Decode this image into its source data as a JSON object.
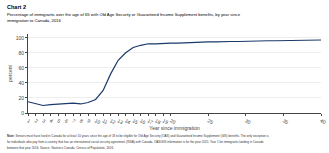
{
  "chart_data": {
    "type": "line",
    "title": "Chart 2",
    "subtitle": [
      "Percentage of immigrants over the age of 65 with Old Age Security or Guaranteed Income Supplement benefits, by year since",
      "immigration to Canada, 2016"
    ],
    "xlabel": "Year since immigration",
    "ylabel": "percent",
    "x": [
      1,
      2,
      3,
      4,
      5,
      6,
      7,
      8,
      9,
      10,
      11,
      12,
      13,
      14,
      15,
      16,
      17,
      18,
      19,
      20,
      21,
      22,
      23,
      24,
      25,
      26,
      27,
      28,
      29,
      30,
      31,
      32,
      33,
      34,
      35,
      36,
      37,
      38,
      39,
      40
    ],
    "values": [
      15,
      12,
      10,
      11,
      12,
      13,
      13,
      12,
      14,
      18,
      30,
      52,
      70,
      80,
      87,
      90,
      92,
      92,
      93,
      93,
      93,
      93.5,
      94,
      94,
      94.5,
      94.5,
      95,
      95,
      95,
      95.5,
      95.5,
      95.5,
      96,
      96,
      96,
      96,
      96.2,
      96.2,
      96.5,
      97
    ],
    "color": "#1a3a6b",
    "xlim": [
      1,
      40
    ],
    "ylim": [
      0,
      105
    ],
    "xticks": [
      1,
      2,
      3,
      4,
      5,
      6,
      7,
      8,
      9,
      10,
      11,
      12,
      13,
      14,
      15,
      16,
      17,
      18,
      19,
      20,
      25,
      30,
      35,
      40
    ],
    "yticks": [
      0,
      20,
      40,
      60,
      80,
      100
    ],
    "grid": "y",
    "note_label": "Note:",
    "notes": [
      " Seniors must have lived in Canada for at least 10 years since the age of 18 to be eligible for Old Age Security (OAS) and Guaranteed Income Supplement (GIS) benefits. The only exception is",
      "for individuals who pay from a country that has an international social security agreement (ISSA) with Canada. OAS/GIS information is for the year 2015. Year 1 for immigrants landing in Canada",
      "between that year 2016."
    ],
    "source": "Source: Statistics Canada, Census of Population, 2016."
  }
}
